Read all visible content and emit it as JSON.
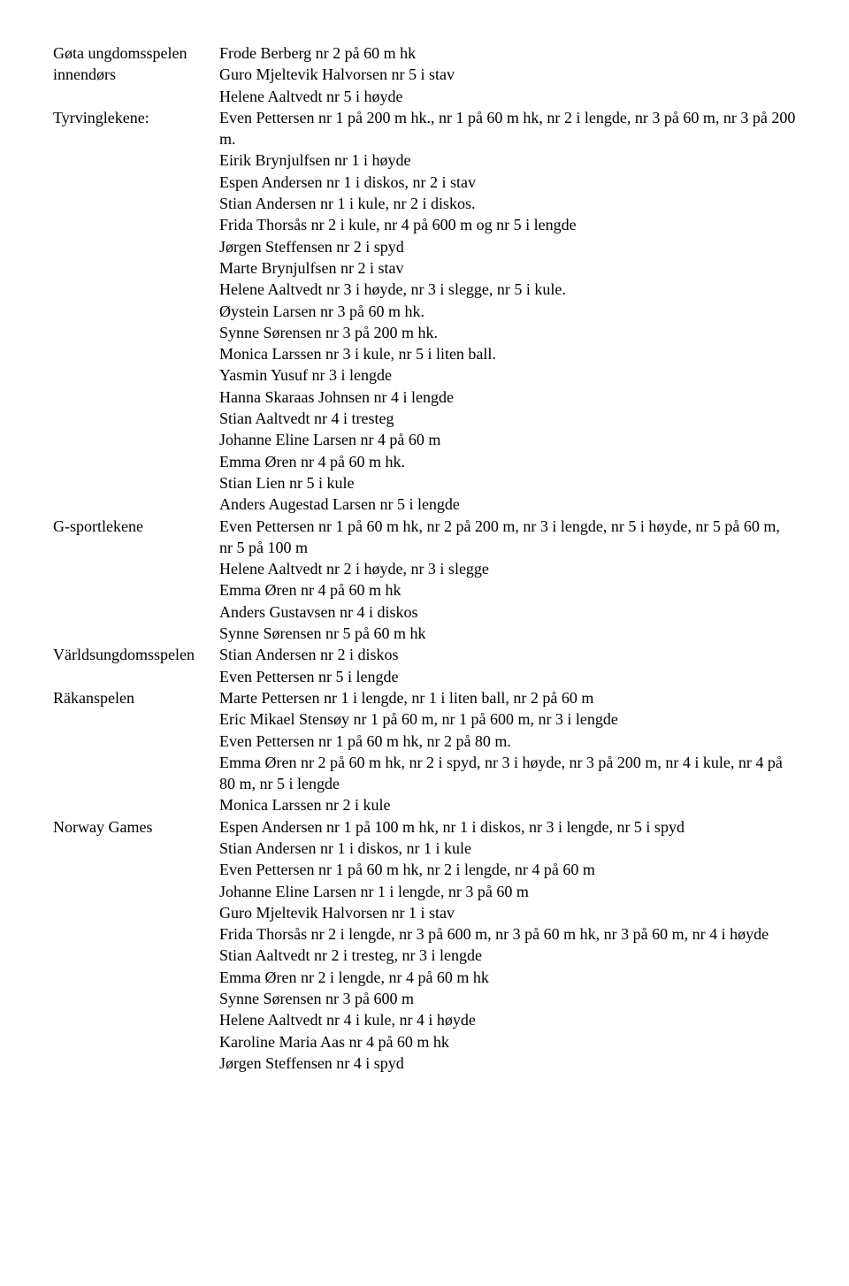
{
  "sections": [
    {
      "label": "Gøta ungdomsspelen innendørs",
      "lines": [
        "Frode Berberg nr 2 på 60 m hk",
        "Guro Mjeltevik Halvorsen nr 5 i stav",
        "Helene Aaltvedt nr 5 i høyde"
      ]
    },
    {
      "label": "Tyrvinglekene:",
      "lines": [
        "Even Pettersen nr 1 på 200 m hk., nr 1 på 60 m hk, nr 2 i lengde, nr 3 på 60 m, nr 3 på 200 m.",
        "Eirik Brynjulfsen nr 1 i høyde",
        "Espen Andersen nr 1 i diskos, nr 2 i stav",
        "Stian Andersen nr 1 i kule, nr 2 i diskos.",
        "Frida Thorsås nr 2 i kule, nr 4 på 600 m og nr 5 i lengde",
        "Jørgen Steffensen nr 2 i spyd",
        "Marte Brynjulfsen nr 2 i stav",
        "Helene Aaltvedt nr 3 i høyde, nr 3 i slegge, nr 5 i kule.",
        "Øystein Larsen nr 3 på 60 m hk.",
        "Synne Sørensen nr 3 på 200 m hk.",
        "Monica Larssen nr 3 i kule, nr 5 i liten ball.",
        "Yasmin Yusuf nr 3 i lengde",
        "Hanna Skaraas Johnsen nr 4 i lengde",
        "Stian Aaltvedt nr 4 i tresteg",
        "Johanne Eline Larsen nr 4 på 60 m",
        "Emma Øren nr 4 på 60 m hk.",
        "Stian Lien nr 5 i kule",
        "Anders Augestad Larsen nr 5 i lengde"
      ]
    },
    {
      "label": "G-sportlekene",
      "lines": [
        "Even Pettersen nr 1 på 60 m hk, nr 2 på 200 m, nr 3 i lengde, nr 5 i høyde, nr 5 på 60 m, nr 5 på 100 m",
        "Helene Aaltvedt nr 2 i høyde, nr 3 i slegge",
        "Emma Øren nr 4 på 60 m hk",
        "Anders Gustavsen nr 4 i diskos",
        "Synne Sørensen nr 5 på 60 m hk"
      ]
    },
    {
      "label": "Världsungdomsspelen",
      "lines": [
        "Stian Andersen nr 2 i diskos",
        "Even Pettersen nr 5 i lengde"
      ]
    },
    {
      "label": "Räkanspelen",
      "lines": [
        "Marte Pettersen nr 1 i lengde, nr 1 i liten ball, nr 2 på 60 m",
        "Eric Mikael Stensøy nr 1 på 60 m, nr 1 på 600 m, nr 3 i lengde",
        "Even Pettersen nr 1 på 60 m hk, nr 2 på 80 m.",
        "Emma Øren nr 2 på 60 m hk, nr 2 i spyd, nr 3 i høyde, nr 3 på 200 m, nr 4 i kule, nr 4 på 80 m, nr 5 i lengde",
        "Monica Larssen nr 2 i kule"
      ]
    },
    {
      "label": "Norway Games",
      "lines": [
        "Espen Andersen nr 1 på 100 m hk, nr 1 i diskos, nr 3 i lengde, nr 5 i spyd",
        "Stian Andersen nr 1 i diskos, nr 1 i kule",
        "Even Pettersen nr 1 på 60 m hk, nr 2 i lengde, nr 4 på 60 m",
        "Johanne Eline Larsen nr 1 i lengde, nr 3 på 60 m",
        "Guro Mjeltevik Halvorsen nr 1 i stav",
        "Frida Thorsås nr 2 i lengde, nr 3 på 600 m, nr 3 på 60 m hk, nr 3 på 60 m, nr 4 i høyde",
        "Stian Aaltvedt nr 2 i tresteg, nr 3 i lengde",
        "Emma Øren nr 2 i lengde, nr 4 på 60 m hk",
        "Synne Sørensen nr 3 på 600 m",
        "Helene Aaltvedt nr 4 i kule, nr 4 i høyde",
        "Karoline Maria Aas nr 4 på 60 m hk",
        "Jørgen Steffensen nr 4 i spyd"
      ]
    }
  ]
}
